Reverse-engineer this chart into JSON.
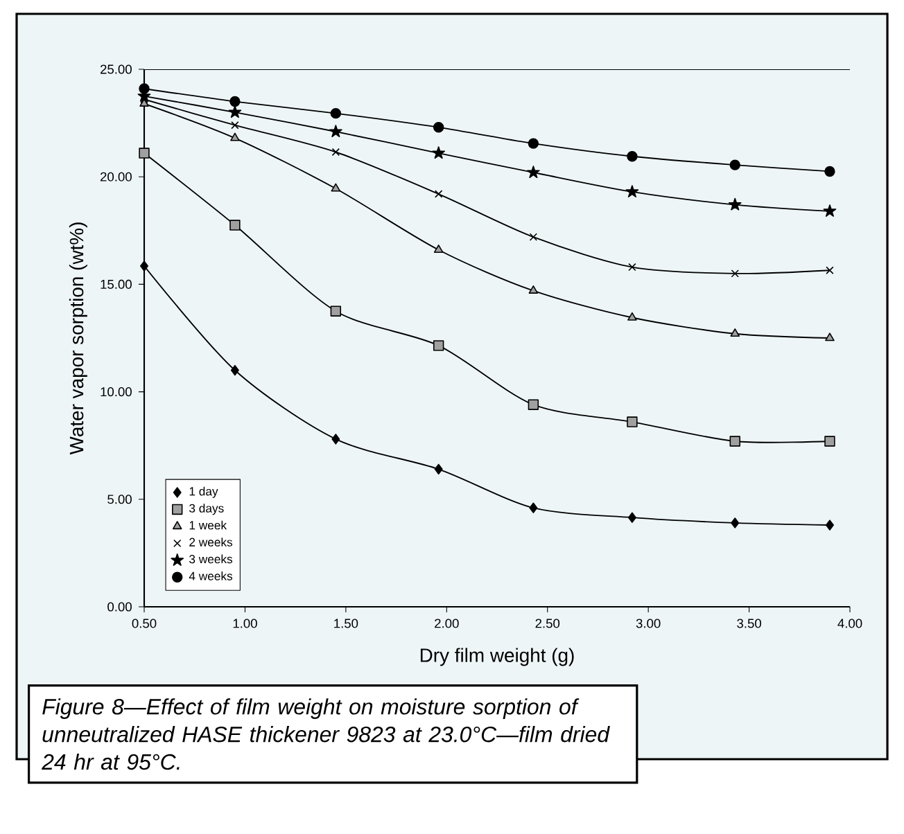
{
  "chart_data": {
    "type": "line",
    "xlabel": "Dry film weight (g)",
    "ylabel": "Water vapor sorption (wt%)",
    "x": [
      0.5,
      0.95,
      1.45,
      1.96,
      2.43,
      2.92,
      3.43,
      3.9
    ],
    "xlim": [
      0.5,
      4.0
    ],
    "xticks": [
      {
        "value": 0.5,
        "label": "0.50"
      },
      {
        "value": 1.0,
        "label": "1.00"
      },
      {
        "value": 1.5,
        "label": "1.50"
      },
      {
        "value": 2.0,
        "label": "2.00"
      },
      {
        "value": 2.5,
        "label": "2.50"
      },
      {
        "value": 3.0,
        "label": "3.00"
      },
      {
        "value": 3.5,
        "label": "3.50"
      },
      {
        "value": 4.0,
        "label": "4.00"
      }
    ],
    "ylim": [
      0,
      25
    ],
    "yticks": [
      {
        "value": 0,
        "label": "0.00"
      },
      {
        "value": 5,
        "label": "5.00"
      },
      {
        "value": 10,
        "label": "10.00"
      },
      {
        "value": 15,
        "label": "15.00"
      },
      {
        "value": 20,
        "label": "20.00"
      },
      {
        "value": 25,
        "label": "25.00"
      }
    ],
    "legend": "bottom left",
    "series": [
      {
        "name": "1 day",
        "color": "#000000",
        "marker": "diamond",
        "values": [
          15.85,
          11.0,
          7.8,
          6.4,
          4.6,
          4.15,
          3.9,
          3.8
        ]
      },
      {
        "name": "3 days",
        "color": "#a0a0a0",
        "marker": "square",
        "values": [
          21.1,
          17.75,
          13.75,
          12.15,
          9.4,
          8.6,
          7.7,
          7.7
        ]
      },
      {
        "name": "1 week",
        "color": "#a0a0a0",
        "marker": "triangle",
        "values": [
          23.4,
          21.8,
          19.45,
          16.6,
          14.7,
          13.45,
          12.7,
          12.5
        ]
      },
      {
        "name": "2 weeks",
        "color": "#000000",
        "marker": "cross",
        "values": [
          23.6,
          22.4,
          21.15,
          19.2,
          17.2,
          15.8,
          15.5,
          15.65
        ]
      },
      {
        "name": "3 weeks",
        "color": "#000000",
        "marker": "star",
        "values": [
          23.75,
          23.0,
          22.1,
          21.1,
          20.2,
          19.3,
          18.7,
          18.4
        ]
      },
      {
        "name": "4 weeks",
        "color": "#000000",
        "marker": "circle",
        "values": [
          24.1,
          23.5,
          22.95,
          22.3,
          21.55,
          20.95,
          20.55,
          20.25
        ]
      }
    ],
    "annotations": [
      "*Figure 8—Effect of film weight on moisture sorption of unneutralized HASE thickener 9823 at 23.0°C—film dried 24 hr at 95°C.*"
    ]
  }
}
